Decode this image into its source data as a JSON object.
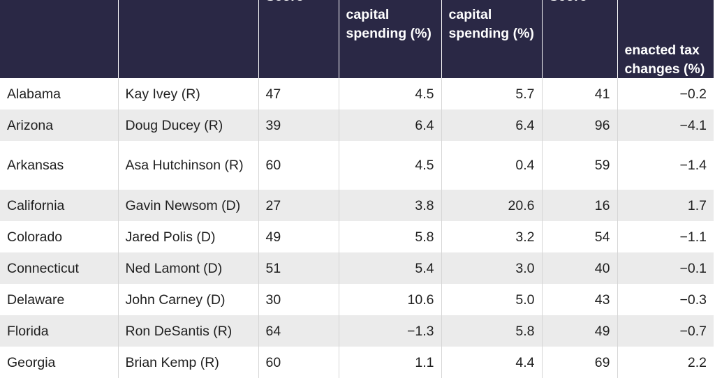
{
  "table": {
    "columns": [
      {
        "label": ""
      },
      {
        "label": ""
      },
      {
        "label": "Score"
      },
      {
        "label": "capital spending (%)"
      },
      {
        "label": "capital spending (%)"
      },
      {
        "label": "Score"
      },
      {
        "label": "enacted tax changes (%)"
      }
    ],
    "rows": [
      {
        "state": "Alabama",
        "governor": "Kay Ivey (R)",
        "c3": "47",
        "c4": "4.5",
        "c5": "5.7",
        "c6": "41",
        "c7": "−0.2"
      },
      {
        "state": "Arizona",
        "governor": "Doug Ducey (R)",
        "c3": "39",
        "c4": "6.4",
        "c5": "6.4",
        "c6": "96",
        "c7": "−4.1"
      },
      {
        "state": "Arkansas",
        "governor": "Asa Hutchinson (R)",
        "c3": "60",
        "c4": "4.5",
        "c5": "0.4",
        "c6": "59",
        "c7": "−1.4"
      },
      {
        "state": "California",
        "governor": "Gavin Newsom (D)",
        "c3": "27",
        "c4": "3.8",
        "c5": "20.6",
        "c6": "16",
        "c7": "1.7"
      },
      {
        "state": "Colorado",
        "governor": "Jared Polis (D)",
        "c3": "49",
        "c4": "5.8",
        "c5": "3.2",
        "c6": "54",
        "c7": "−1.1"
      },
      {
        "state": "Connecticut",
        "governor": "Ned Lamont (D)",
        "c3": "51",
        "c4": "5.4",
        "c5": "3.0",
        "c6": "40",
        "c7": "−0.1"
      },
      {
        "state": "Delaware",
        "governor": "John Carney (D)",
        "c3": "30",
        "c4": "10.6",
        "c5": "5.0",
        "c6": "43",
        "c7": "−0.3"
      },
      {
        "state": "Florida",
        "governor": "Ron DeSantis (R)",
        "c3": "64",
        "c4": "−1.3",
        "c5": "5.8",
        "c6": "49",
        "c7": "−0.7"
      },
      {
        "state": "Georgia",
        "governor": "Brian Kemp (R)",
        "c3": "60",
        "c4": "1.1",
        "c5": "4.4",
        "c6": "69",
        "c7": "2.2"
      }
    ]
  }
}
